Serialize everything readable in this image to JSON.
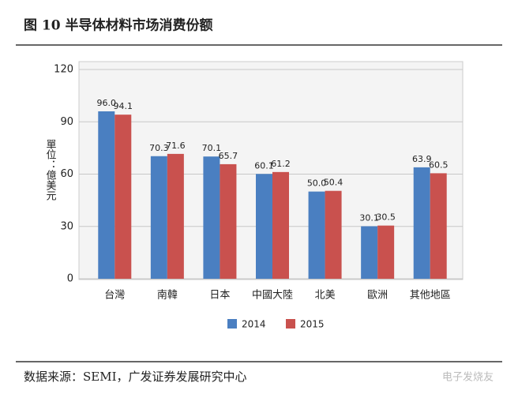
{
  "chart_data": {
    "type": "bar",
    "title": "图 10   半导体材料市场消费份额",
    "y_label": "單位：億美元",
    "source": "数据来源：SEMI，广发证券发展研究中心",
    "watermark": "电子发烧友",
    "categories": [
      "台灣",
      "南韓",
      "日本",
      "中國大陸",
      "北美",
      "歐洲",
      "其他地區"
    ],
    "series": [
      {
        "name": "2014",
        "color": "#4a7fc1",
        "values": [
          96.0,
          70.3,
          70.1,
          60.1,
          50.0,
          30.1,
          63.9
        ],
        "value_labels": [
          "96.0",
          "70.3",
          "70.1",
          "60.1",
          "50.0",
          "30.1",
          "63.9"
        ]
      },
      {
        "name": "2015",
        "color": "#c9514e",
        "values": [
          94.1,
          71.6,
          65.7,
          61.2,
          50.4,
          30.5,
          60.5
        ],
        "value_labels": [
          "94.1",
          "71.6",
          "65.7",
          "61.2",
          "50.4",
          "30.5",
          "60.5"
        ]
      }
    ],
    "ylim": [
      0,
      120
    ],
    "yticks": [
      0,
      30,
      60,
      90,
      120
    ],
    "grid": true
  }
}
